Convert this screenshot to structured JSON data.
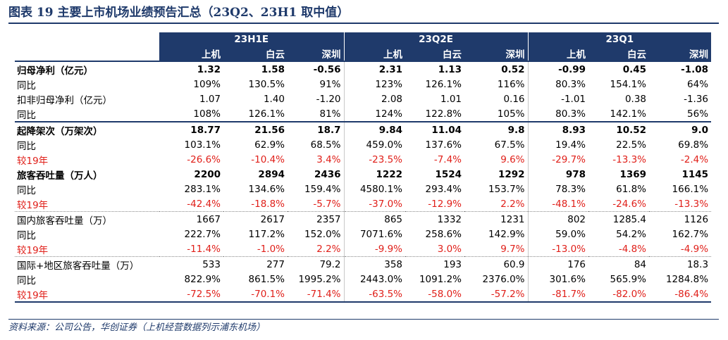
{
  "title": "图表 19   主要上市机场业绩预告汇总（23Q2、23H1 取中值）",
  "groups": [
    "23H1E",
    "23Q2E",
    "23Q1"
  ],
  "airports": [
    "上机",
    "白云",
    "深圳"
  ],
  "rows": [
    {
      "label": "归母净利（亿元）",
      "style": "bold sectop",
      "values": [
        "1.32",
        "1.58",
        "-0.56",
        "2.31",
        "1.13",
        "0.52",
        "-0.99",
        "0.45",
        "-1.08"
      ]
    },
    {
      "label": "同比",
      "style": "",
      "values": [
        "109%",
        "130.5%",
        "91%",
        "123%",
        "126.1%",
        "116%",
        "80.3%",
        "154.1%",
        "64%"
      ]
    },
    {
      "label": "扣非归母净利（亿元）",
      "style": "",
      "values": [
        "1.07",
        "1.40",
        "-1.20",
        "2.08",
        "1.01",
        "0.16",
        "-1.01",
        "0.38",
        "-1.36"
      ]
    },
    {
      "label": "同比",
      "style": "",
      "values": [
        "108%",
        "126.1%",
        "81%",
        "124%",
        "122.8%",
        "105%",
        "80.3%",
        "142.1%",
        "56%"
      ]
    },
    {
      "label": "起降架次（万架次）",
      "style": "bold sectop",
      "values": [
        "18.77",
        "21.56",
        "18.7",
        "9.84",
        "11.04",
        "9.8",
        "8.93",
        "10.52",
        "9.0"
      ]
    },
    {
      "label": "同比",
      "style": "",
      "values": [
        "103.1%",
        "62.9%",
        "68.5%",
        "459.0%",
        "137.6%",
        "67.5%",
        "19.4%",
        "22.5%",
        "69.8%"
      ]
    },
    {
      "label": "较19年",
      "style": "red",
      "values": [
        "-26.6%",
        "-10.4%",
        "3.4%",
        "-23.5%",
        "-7.4%",
        "9.6%",
        "-29.7%",
        "-13.3%",
        "-2.4%"
      ]
    },
    {
      "label": "旅客吞吐量（万人）",
      "style": "bold",
      "values": [
        "2200",
        "2894",
        "2436",
        "1222",
        "1524",
        "1292",
        "978",
        "1369",
        "1145"
      ]
    },
    {
      "label": "同比",
      "style": "",
      "values": [
        "283.1%",
        "134.6%",
        "159.4%",
        "4580.1%",
        "293.4%",
        "153.7%",
        "78.3%",
        "61.8%",
        "166.1%"
      ]
    },
    {
      "label": "较19年",
      "style": "red",
      "values": [
        "-42.4%",
        "-18.8%",
        "-5.7%",
        "-37.0%",
        "-12.9%",
        "2.2%",
        "-48.1%",
        "-24.6%",
        "-13.3%"
      ]
    },
    {
      "label": "国内旅客吞吐量（万）",
      "style": "secdot",
      "values": [
        "1667",
        "2617",
        "2357",
        "865",
        "1332",
        "1231",
        "802",
        "1285.4",
        "1126"
      ]
    },
    {
      "label": "同比",
      "style": "",
      "values": [
        "222.7%",
        "117.2%",
        "152.0%",
        "7071.6%",
        "258.6%",
        "142.9%",
        "59.0%",
        "54.2%",
        "162.7%"
      ]
    },
    {
      "label": "较19年",
      "style": "red",
      "values": [
        "-11.4%",
        "-1.0%",
        "2.2%",
        "-9.9%",
        "3.0%",
        "9.7%",
        "-13.0%",
        "-4.8%",
        "-4.9%"
      ]
    },
    {
      "label": "国际+地区旅客吞吐量（万）",
      "style": "secdot",
      "values": [
        "533",
        "277",
        "79.2",
        "358",
        "193",
        "60.9",
        "176",
        "84",
        "18.3"
      ]
    },
    {
      "label": "同比",
      "style": "",
      "values": [
        "822.9%",
        "861.5%",
        "1995.2%",
        "2443.0%",
        "1091.2%",
        "2376.0%",
        "301.6%",
        "565.9%",
        "1284.8%"
      ]
    },
    {
      "label": "较19年",
      "style": "red last",
      "values": [
        "-72.5%",
        "-70.1%",
        "-71.4%",
        "-63.5%",
        "-58.0%",
        "-57.2%",
        "-81.7%",
        "-82.0%",
        "-86.4%"
      ]
    }
  ],
  "footer": "资料来源：公司公告，华创证券（上机经营数据列示浦东机场）"
}
